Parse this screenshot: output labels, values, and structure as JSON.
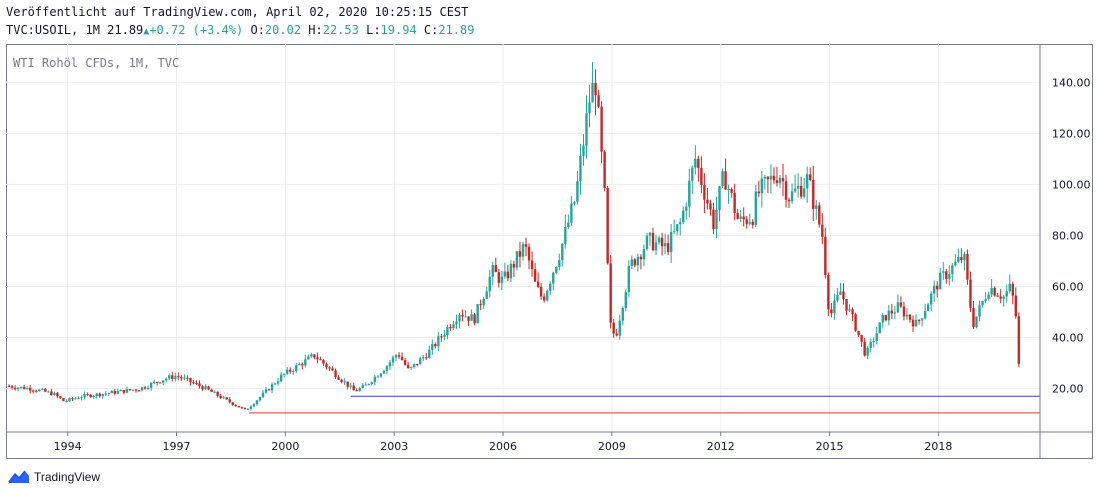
{
  "header": {
    "published": "Veröffentlicht auf TradingView.com, April 02, 2020 10:25:15 CEST",
    "symbol": "TVC:USOIL, 1M",
    "last": "21.89",
    "change": "+0.72 (+3.4%)",
    "o_label": "O:",
    "o": "20.02",
    "h_label": "H:",
    "h": "22.53",
    "l_label": "L:",
    "l": "19.94",
    "c_label": "C:",
    "c": "21.89"
  },
  "legend": "WTI Rohöl CFDs, 1M, TVC",
  "brand": "TradingView",
  "colors": {
    "up": "#26a69a",
    "down": "#c62828",
    "body_up": "#26a69a",
    "blue_line": "#3b3bd6",
    "red_line": "#e53935",
    "grid": "#eeeeee"
  },
  "chart_data": {
    "type": "candlestick",
    "title": "WTI Rohöl CFDs, 1M, TVC",
    "x_ticks": [
      "1994",
      "1997",
      "2000",
      "2003",
      "2006",
      "2009",
      "2012",
      "2015",
      "2018"
    ],
    "x_tick_years": [
      1994,
      1997,
      2000,
      2003,
      2006,
      2009,
      2012,
      2015,
      2018
    ],
    "y_ticks": [
      "140.00",
      "120.00",
      "100.00",
      "80.00",
      "60.00",
      "40.00",
      "20.00"
    ],
    "y_tick_values": [
      140,
      120,
      100,
      80,
      60,
      40,
      20
    ],
    "ylim": [
      3,
      155
    ],
    "xlim": [
      1992.3,
      2020.8
    ],
    "price_label": "21.89",
    "horizontal_lines": [
      {
        "value": 17.0,
        "from": 2001.8,
        "color": "#3b3bd6"
      },
      {
        "value": 10.5,
        "from": 1999.0,
        "color": "#e53935"
      }
    ],
    "series": [
      {
        "name": "WTI Rohöl CFDs",
        "anchors": [
          [
            1992.3,
            21
          ],
          [
            1993.0,
            20
          ],
          [
            1993.6,
            18
          ],
          [
            1993.9,
            15
          ],
          [
            1994.4,
            17
          ],
          [
            1995.0,
            18
          ],
          [
            1996.0,
            20
          ],
          [
            1996.7,
            24
          ],
          [
            1997.0,
            25
          ],
          [
            1997.8,
            20
          ],
          [
            1998.3,
            16
          ],
          [
            1998.9,
            11.5
          ],
          [
            1999.4,
            18
          ],
          [
            1999.9,
            25
          ],
          [
            2000.8,
            33
          ],
          [
            2001.2,
            28
          ],
          [
            2001.9,
            19
          ],
          [
            2002.2,
            21
          ],
          [
            2002.8,
            29
          ],
          [
            2003.1,
            34
          ],
          [
            2003.4,
            27
          ],
          [
            2004.0,
            35
          ],
          [
            2004.8,
            50
          ],
          [
            2005.2,
            47
          ],
          [
            2005.7,
            66
          ],
          [
            2006.0,
            62
          ],
          [
            2006.6,
            76
          ],
          [
            2006.9,
            60
          ],
          [
            2007.1,
            55
          ],
          [
            2007.6,
            75
          ],
          [
            2008.0,
            95
          ],
          [
            2008.4,
            135
          ],
          [
            2008.55,
            140
          ],
          [
            2008.8,
            95
          ],
          [
            2008.95,
            45
          ],
          [
            2009.1,
            40
          ],
          [
            2009.5,
            68
          ],
          [
            2010.0,
            78
          ],
          [
            2010.5,
            75
          ],
          [
            2010.9,
            85
          ],
          [
            2011.3,
            110
          ],
          [
            2011.8,
            85
          ],
          [
            2012.1,
            104
          ],
          [
            2012.5,
            85
          ],
          [
            2012.9,
            88
          ],
          [
            2013.0,
            96
          ],
          [
            2013.6,
            105
          ],
          [
            2013.9,
            95
          ],
          [
            2014.4,
            102
          ],
          [
            2014.8,
            80
          ],
          [
            2015.0,
            48
          ],
          [
            2015.3,
            58
          ],
          [
            2015.7,
            45
          ],
          [
            2016.0,
            33
          ],
          [
            2016.5,
            48
          ],
          [
            2016.9,
            52
          ],
          [
            2017.4,
            45
          ],
          [
            2018.0,
            62
          ],
          [
            2018.7,
            72
          ],
          [
            2018.95,
            45
          ],
          [
            2019.4,
            60
          ],
          [
            2019.8,
            56
          ],
          [
            2020.0,
            60
          ],
          [
            2020.15,
            47
          ],
          [
            2020.25,
            20.2
          ]
        ]
      }
    ]
  }
}
